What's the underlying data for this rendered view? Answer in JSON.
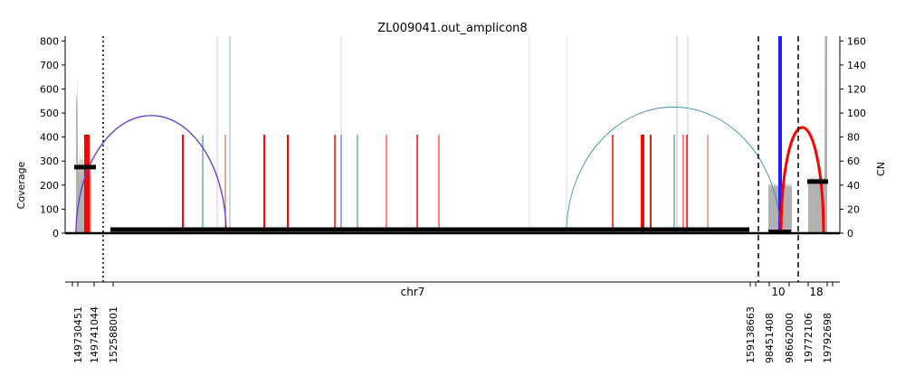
{
  "chart_data": {
    "type": "line",
    "title": "ZL009041.out_amplicon8",
    "ylabel_left": "Coverage",
    "ylabel_right": "CN",
    "xlabel": "chr7",
    "left_axis": {
      "ylim": [
        0,
        820
      ],
      "ticks": [
        0,
        100,
        200,
        300,
        400,
        500,
        600,
        700,
        800
      ]
    },
    "right_axis": {
      "ylim": [
        0,
        164
      ],
      "ticks": [
        0,
        20,
        40,
        60,
        80,
        100,
        120,
        140,
        160
      ]
    },
    "x_position_ticks": [
      "149730451",
      "149741044",
      "152588001",
      "159138663",
      "98451408",
      "98662000",
      "19772106",
      "19792698"
    ],
    "chromosome_labels": [
      "chr7",
      "10",
      "18"
    ],
    "segments": [
      {
        "region": "chr7:149730451-149741044",
        "cn": 55
      },
      {
        "region": "chr7:152588001-159138663",
        "cn": 3
      },
      {
        "region": "chr10:98451408-98662000",
        "cn": 1
      },
      {
        "region": "chr18:19772106-19792698",
        "cn": 43
      }
    ],
    "arcs": [
      {
        "color": "#6a3fc8",
        "height_coverage": 490
      },
      {
        "color": "#2a8a9a",
        "height_coverage": 525
      },
      {
        "color": "#ff0000",
        "height_coverage": 440
      }
    ],
    "breakpoint_lines": {
      "style": "dashed",
      "count": 2
    },
    "region_boundary": {
      "style": "dotted",
      "count": 1
    }
  }
}
